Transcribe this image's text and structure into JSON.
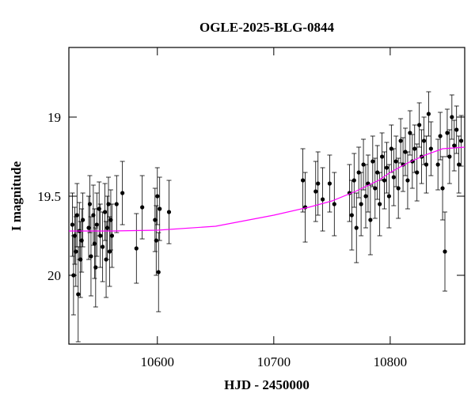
{
  "chart_data": {
    "type": "errorbar-scatter",
    "title": "OGLE-2025-BLG-0844",
    "x_label": "HJD - 2450000",
    "y_label": "I magnitude",
    "xlim": [
      10524,
      10864
    ],
    "ylim": [
      20.435,
      18.56
    ],
    "y_inverted": true,
    "xticks": [
      10600,
      10700,
      10800
    ],
    "yticks": [
      19,
      19.5,
      20
    ],
    "color": "#000000",
    "x": [
      10527,
      10528,
      10529,
      10530,
      10531,
      10532,
      10533,
      10534,
      10535,
      10536,
      10541,
      10542,
      10543,
      10545,
      10546,
      10547,
      10548,
      10550,
      10551,
      10553,
      10555,
      10556,
      10557,
      10558,
      10559,
      10560,
      10561,
      10565,
      10570,
      10582,
      10587,
      10598,
      10599,
      10600,
      10601,
      10602,
      10610,
      10725,
      10727,
      10736,
      10738,
      10742,
      10748,
      10752,
      10765,
      10767,
      10769,
      10771,
      10773,
      10775,
      10777,
      10779,
      10781,
      10783,
      10785,
      10787,
      10789,
      10791,
      10793,
      10795,
      10797,
      10799,
      10801,
      10803,
      10805,
      10807,
      10809,
      10811,
      10813,
      10815,
      10817,
      10819,
      10821,
      10823,
      10825,
      10827,
      10829,
      10831,
      10833,
      10835,
      10841,
      10843,
      10845,
      10847,
      10849,
      10851,
      10853,
      10855,
      10857,
      10859,
      10861
    ],
    "values": [
      19.68,
      20.0,
      19.75,
      19.85,
      19.62,
      20.12,
      19.72,
      19.9,
      19.78,
      19.65,
      19.7,
      19.55,
      19.88,
      19.62,
      19.8,
      19.95,
      19.68,
      19.58,
      19.75,
      19.82,
      19.6,
      19.9,
      19.7,
      19.55,
      19.85,
      19.65,
      19.75,
      19.55,
      19.48,
      19.83,
      19.57,
      19.65,
      19.78,
      19.5,
      19.98,
      19.58,
      19.6,
      19.4,
      19.57,
      19.47,
      19.42,
      19.52,
      19.42,
      19.55,
      19.48,
      19.62,
      19.4,
      19.7,
      19.35,
      19.55,
      19.3,
      19.5,
      19.42,
      19.65,
      19.28,
      19.45,
      19.35,
      19.55,
      19.25,
      19.4,
      19.32,
      19.5,
      19.2,
      19.38,
      19.28,
      19.45,
      19.15,
      19.3,
      19.22,
      19.4,
      19.1,
      19.28,
      19.2,
      19.35,
      19.05,
      19.25,
      19.15,
      19.3,
      18.98,
      19.2,
      19.3,
      19.12,
      19.45,
      19.85,
      19.1,
      19.25,
      19.0,
      19.18,
      19.08,
      19.3,
      19.15
    ],
    "errors": [
      0.2,
      0.25,
      0.18,
      0.22,
      0.2,
      0.3,
      0.18,
      0.24,
      0.2,
      0.17,
      0.2,
      0.18,
      0.25,
      0.19,
      0.22,
      0.25,
      0.2,
      0.17,
      0.2,
      0.22,
      0.18,
      0.24,
      0.2,
      0.17,
      0.22,
      0.19,
      0.2,
      0.18,
      0.2,
      0.22,
      0.2,
      0.2,
      0.22,
      0.18,
      0.25,
      0.2,
      0.2,
      0.2,
      0.22,
      0.19,
      0.2,
      0.2,
      0.18,
      0.2,
      0.18,
      0.22,
      0.17,
      0.22,
      0.16,
      0.2,
      0.16,
      0.2,
      0.18,
      0.22,
      0.16,
      0.19,
      0.17,
      0.2,
      0.15,
      0.18,
      0.16,
      0.2,
      0.15,
      0.18,
      0.16,
      0.19,
      0.14,
      0.17,
      0.15,
      0.18,
      0.14,
      0.17,
      0.15,
      0.18,
      0.14,
      0.17,
      0.15,
      0.18,
      0.14,
      0.17,
      0.16,
      0.15,
      0.2,
      0.25,
      0.15,
      0.17,
      0.14,
      0.16,
      0.15,
      0.18,
      0.16
    ],
    "model": {
      "color": "#ff00ff",
      "x": [
        10524,
        10560,
        10600,
        10650,
        10700,
        10730,
        10750,
        10770,
        10790,
        10800,
        10815,
        10830,
        10845,
        10855,
        10864
      ],
      "values": [
        19.72,
        19.72,
        19.715,
        19.69,
        19.62,
        19.57,
        19.53,
        19.47,
        19.4,
        19.35,
        19.29,
        19.24,
        19.2,
        19.195,
        19.19
      ]
    }
  }
}
